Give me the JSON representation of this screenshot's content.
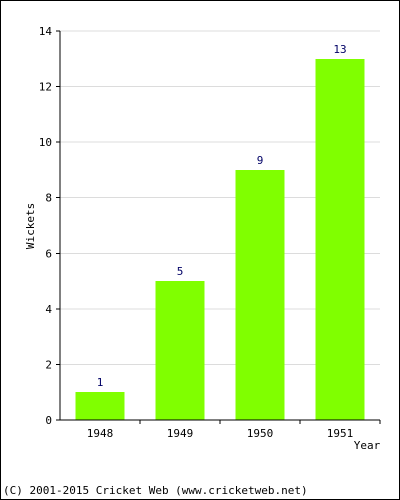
{
  "chart_data": {
    "type": "bar",
    "title": "",
    "xlabel": "Year",
    "ylabel": "Wickets",
    "categories": [
      "1948",
      "1949",
      "1950",
      "1951"
    ],
    "values": [
      1,
      5,
      9,
      13
    ],
    "ylim": [
      0,
      14
    ],
    "yticks": [
      0,
      2,
      4,
      6,
      8,
      10,
      12,
      14
    ],
    "grid": true,
    "legend": "none",
    "show_data_labels": true,
    "bar_color": "#80FF00"
  },
  "footer": {
    "copyright": "(C) 2001-2015 Cricket Web (www.cricketweb.net)"
  }
}
